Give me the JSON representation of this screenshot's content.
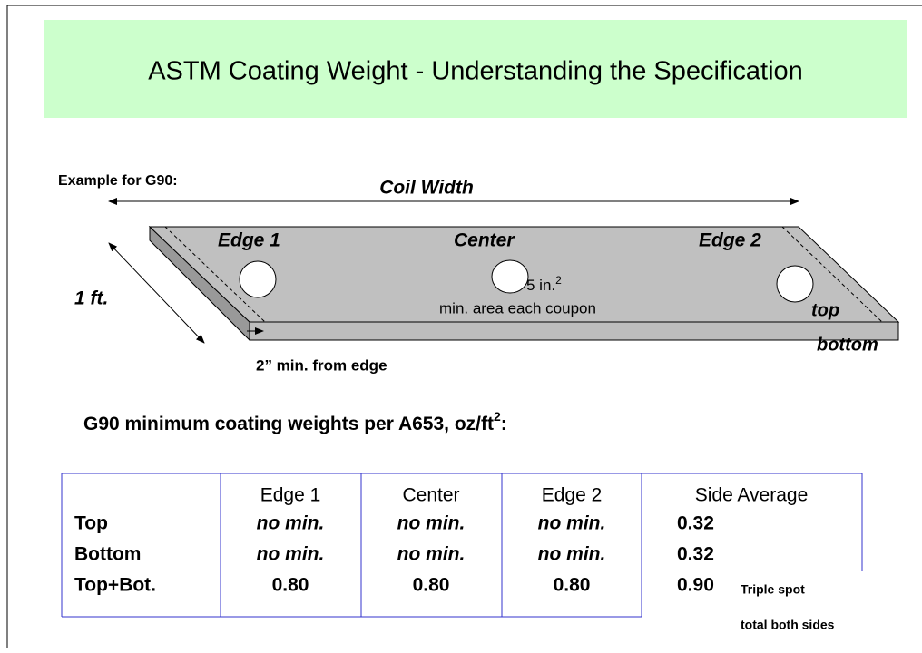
{
  "title": "ASTM Coating Weight - Understanding the Specification",
  "example_label": "Example for G90:",
  "diagram": {
    "coil_width": "Coil Width",
    "length": "1 ft.",
    "edge1": "Edge 1",
    "center": "Center",
    "edge2": "Edge 2",
    "coupon_area": "5 in.",
    "coupon_area_sup": "2",
    "coupon_note": "min. area each coupon",
    "top": "top",
    "bottom": "bottom",
    "edge_distance": "2” min. from edge"
  },
  "table_title": {
    "text": "G90 minimum coating weights per A653, oz/ft",
    "sup": "2",
    "tail": ":"
  },
  "table": {
    "header": [
      "Edge 1",
      "Center",
      "Edge 2",
      "Side Average"
    ],
    "rows": [
      [
        "Top",
        "no min.",
        "no min.",
        "no min.",
        "0.32"
      ],
      [
        "Bottom",
        "no min.",
        "no min.",
        "no min.",
        "0.32"
      ],
      [
        "Top+Bot.",
        "0.80",
        "0.80",
        "0.80",
        "0.90"
      ]
    ],
    "note": [
      "Triple spot",
      "total both sides"
    ]
  }
}
